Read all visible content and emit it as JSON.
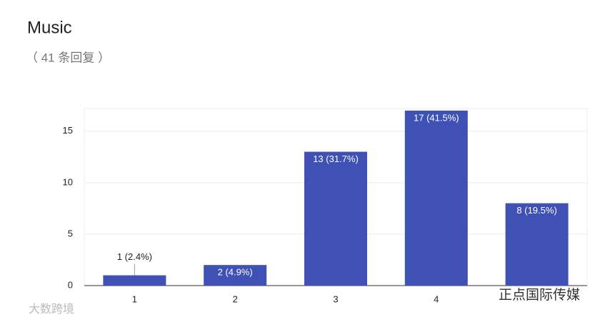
{
  "chart_data": {
    "type": "bar",
    "title": "Music",
    "subtitle": "（ 41 条回复 ）",
    "categories": [
      "1",
      "2",
      "3",
      "4",
      null
    ],
    "values": [
      1,
      2,
      13,
      17,
      8
    ],
    "value_labels": [
      "1 (2.4%)",
      "2 (4.9%)",
      "13 (31.7%)",
      "17 (41.5%)",
      "8 (19.5%)"
    ],
    "color": "#3f51b5",
    "ylim": [
      0,
      17.2
    ],
    "yticks": [
      0,
      5,
      10,
      15
    ],
    "grid": true
  },
  "watermarks": [
    "大数跨境",
    "正点国际传媒"
  ]
}
